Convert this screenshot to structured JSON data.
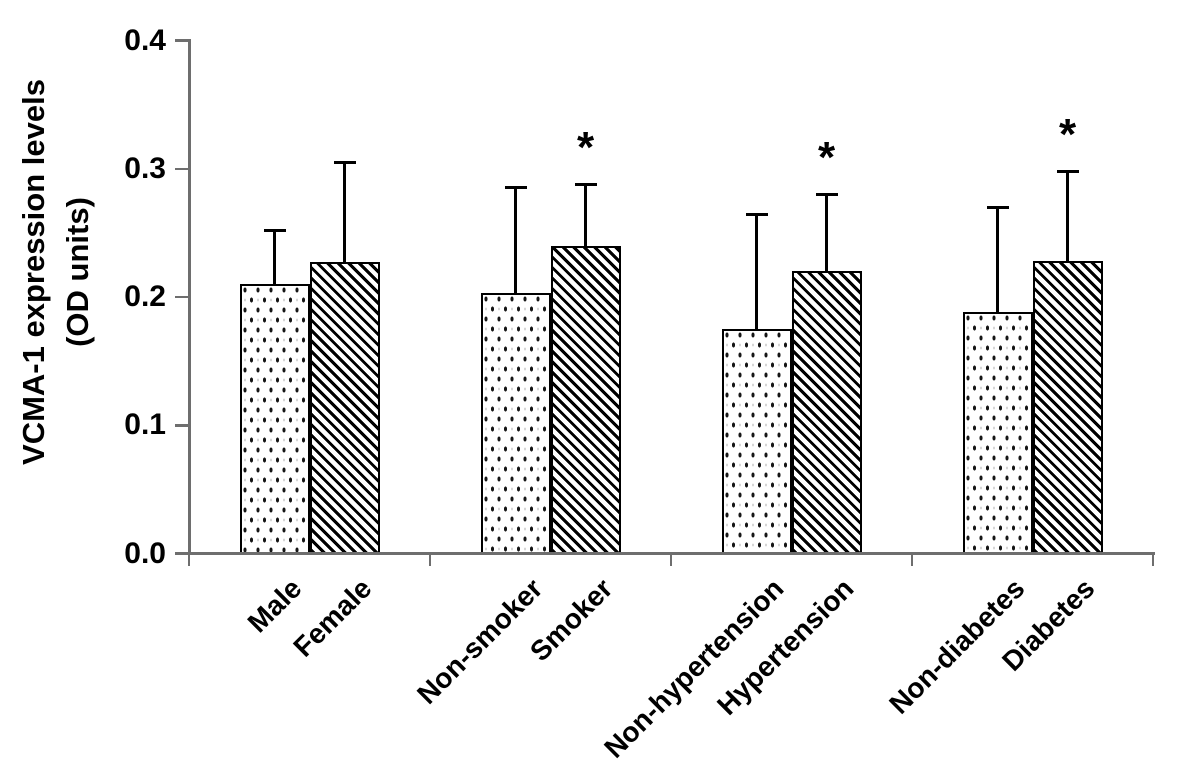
{
  "chart_data": {
    "type": "bar",
    "title": "",
    "ylabel": "VCMA-1 expression levels (OD units)",
    "ylabel_lines": [
      "VCMA-1 expression levels",
      "(OD units)"
    ],
    "xlabel": "",
    "ylim": [
      0,
      0.4
    ],
    "ytick_labels": [
      "0.0",
      "0.1",
      "0.2",
      "0.3",
      "0.4"
    ],
    "ytick_values": [
      0,
      0.1,
      0.2,
      0.3,
      0.4
    ],
    "grid": false,
    "legend_position": "none",
    "error_bars": "upper-only-sd",
    "significance_marker": "*",
    "series_styles": [
      {
        "name": "first-of-pair",
        "pattern": "dotted",
        "fill": "#ffffff",
        "outline": "#000000"
      },
      {
        "name": "second-of-pair",
        "pattern": "diagonal-hatch",
        "fill": "#ffffff",
        "outline": "#000000"
      }
    ],
    "groups": [
      {
        "bars": [
          {
            "label": "Male",
            "value": 0.21,
            "sd": 0.042,
            "pattern": "dotted",
            "significant": false
          },
          {
            "label": "Female",
            "value": 0.227,
            "sd": 0.078,
            "pattern": "hatch",
            "significant": false
          }
        ]
      },
      {
        "bars": [
          {
            "label": "Non-smoker",
            "value": 0.203,
            "sd": 0.082,
            "pattern": "dotted",
            "significant": false
          },
          {
            "label": "Smoker",
            "value": 0.24,
            "sd": 0.048,
            "pattern": "hatch",
            "significant": true
          }
        ]
      },
      {
        "bars": [
          {
            "label": "Non-hypertension",
            "value": 0.175,
            "sd": 0.089,
            "pattern": "dotted",
            "significant": false
          },
          {
            "label": "Hypertension",
            "value": 0.22,
            "sd": 0.06,
            "pattern": "hatch",
            "significant": true
          }
        ]
      },
      {
        "bars": [
          {
            "label": "Non-diabetes",
            "value": 0.188,
            "sd": 0.082,
            "pattern": "dotted",
            "significant": false
          },
          {
            "label": "Diabetes",
            "value": 0.228,
            "sd": 0.07,
            "pattern": "hatch",
            "significant": true
          }
        ]
      }
    ],
    "colors": {
      "axis": "#6e6e6e",
      "text": "#000000",
      "bar_outline": "#000000",
      "background": "#ffffff"
    }
  }
}
